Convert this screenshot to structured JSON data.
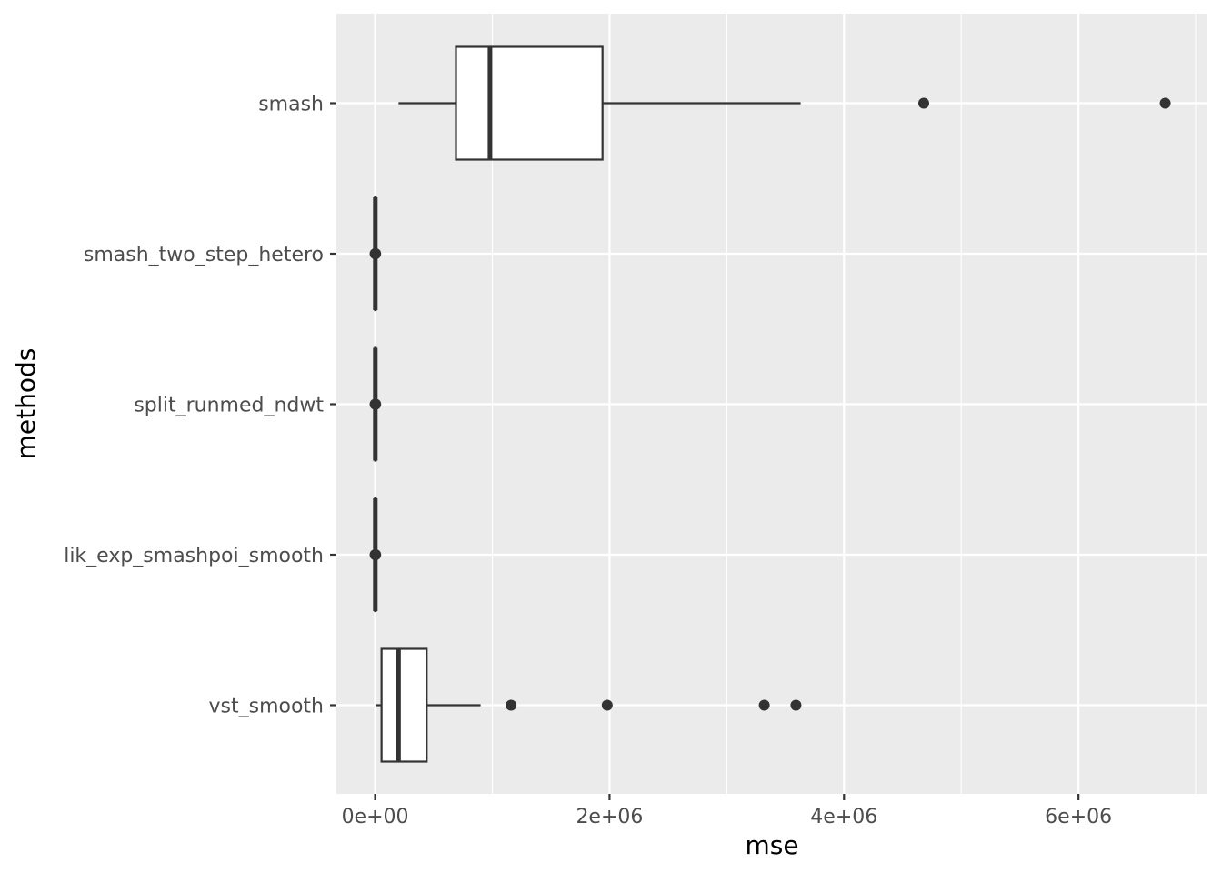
{
  "chart_data": {
    "type": "boxplot",
    "orientation": "horizontal",
    "title": "",
    "xlabel": "mse",
    "ylabel": "methods",
    "xlim": [
      -330000,
      7100000
    ],
    "x_ticks": [
      {
        "value": 0,
        "label": "0e+00"
      },
      {
        "value": 2000000,
        "label": "2e+06"
      },
      {
        "value": 4000000,
        "label": "4e+06"
      },
      {
        "value": 6000000,
        "label": "6e+06"
      }
    ],
    "x_minor_ticks": [
      1000000,
      3000000,
      5000000,
      7000000
    ],
    "grid": true,
    "categories": [
      "smash",
      "smash_two_step_hetero",
      "split_runmed_ndwt",
      "lik_exp_smashpoi_smooth",
      "vst_smooth"
    ],
    "boxes": [
      {
        "category": "smash",
        "whisker_low": 200000,
        "q1": 690000,
        "median": 980000,
        "q3": 1940000,
        "whisker_high": 3630000,
        "outliers": [
          4680000,
          6740000
        ]
      },
      {
        "category": "smash_two_step_hetero",
        "whisker_low": 0,
        "q1": 0,
        "median": 2000,
        "q3": 5000,
        "whisker_high": 10000,
        "outliers": [
          0,
          5000
        ]
      },
      {
        "category": "split_runmed_ndwt",
        "whisker_low": 0,
        "q1": 0,
        "median": 2000,
        "q3": 5000,
        "whisker_high": 10000,
        "outliers": [
          0,
          5000
        ]
      },
      {
        "category": "lik_exp_smashpoi_smooth",
        "whisker_low": 0,
        "q1": 0,
        "median": 2000,
        "q3": 5000,
        "whisker_high": 10000,
        "outliers": [
          0,
          5000
        ]
      },
      {
        "category": "vst_smooth",
        "whisker_low": 10000,
        "q1": 55000,
        "median": 200000,
        "q3": 440000,
        "whisker_high": 900000,
        "outliers": [
          1160000,
          1980000,
          3320000,
          3590000
        ]
      }
    ],
    "colors": {
      "panel": "#ebebeb",
      "grid": "#ffffff",
      "box_fill": "#ffffff",
      "box_stroke": "#333333",
      "outlier": "#333333",
      "tick": "#333333"
    }
  }
}
